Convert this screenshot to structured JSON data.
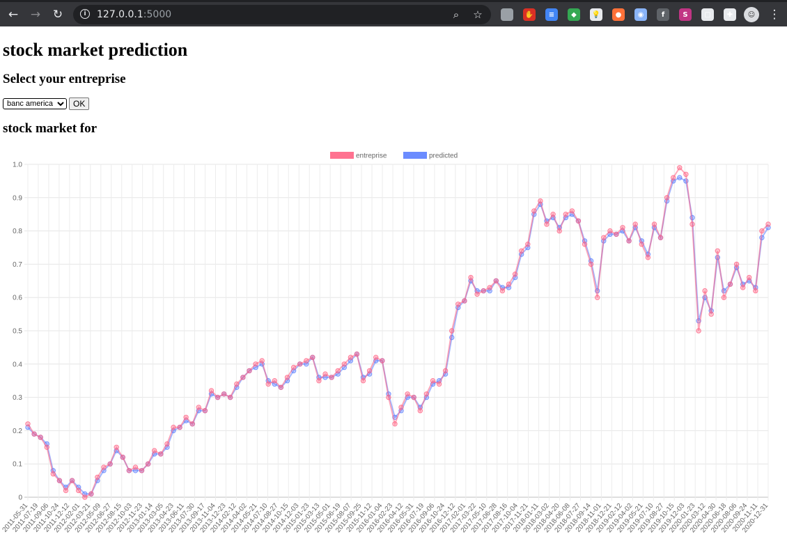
{
  "browser": {
    "url_host": "127.0.0.1",
    "url_port": ":5000",
    "extensions": [
      {
        "name": "screenshot-ext-icon",
        "color": "#9aa0a6",
        "glyph": ""
      },
      {
        "name": "stop-ext-icon",
        "color": "#d93025",
        "glyph": "✋"
      },
      {
        "name": "docs-ext-icon",
        "color": "#4285f4",
        "glyph": "≡"
      },
      {
        "name": "puzzle-colored-ext-icon",
        "color": "#34a853",
        "glyph": "◆"
      },
      {
        "name": "bulb-ext-icon",
        "color": "#e8eaed",
        "glyph": "💡"
      },
      {
        "name": "fox-ext-icon",
        "color": "#ff7139",
        "glyph": "●"
      },
      {
        "name": "disc-ext-icon",
        "color": "#8ab4f8",
        "glyph": "◉"
      },
      {
        "name": "facebook-ext-icon",
        "color": "#5f6368",
        "glyph": "f"
      },
      {
        "name": "s-ext-icon",
        "color": "#c13584",
        "glyph": "S"
      },
      {
        "name": "window-ext-icon",
        "color": "#e8eaed",
        "glyph": "▢"
      },
      {
        "name": "extensions-puzzle-icon",
        "color": "#e8eaed",
        "glyph": "✚"
      }
    ]
  },
  "page": {
    "title": "stock market prediction",
    "select_heading": "Select your entreprise",
    "select_value": "banc america",
    "ok_label": "OK",
    "chart_heading": "stock market for"
  },
  "chart_data": {
    "type": "line",
    "legend_position": "top",
    "grid": true,
    "ylim": [
      0,
      1
    ],
    "yticks": [
      "0",
      "0.1",
      "0.2",
      "0.3",
      "0.4",
      "0.5",
      "0.6",
      "0.7",
      "0.8",
      "0.9",
      "1.0"
    ],
    "x_tick_labels": [
      "2011-05-31",
      "2011-07-19",
      "2011-09-06",
      "2011-10-24",
      "2011-12-12",
      "2012-02-01",
      "2012-03-21",
      "2012-05-09",
      "2012-06-27",
      "2012-08-15",
      "2012-10-03",
      "2012-11-23",
      "2013-01-14",
      "2013-03-05",
      "2013-04-23",
      "2013-06-11",
      "2013-07-30",
      "2013-09-17",
      "2013-11-04",
      "2013-12-23",
      "2014-02-12",
      "2014-04-02",
      "2014-05-21",
      "2014-07-10",
      "2014-08-27",
      "2014-10-15",
      "2014-12-03",
      "2015-01-23",
      "2015-03-13",
      "2015-05-01",
      "2015-06-19",
      "2015-08-07",
      "2015-09-25",
      "2015-11-12",
      "2016-01-04",
      "2016-02-23",
      "2016-04-12",
      "2016-05-31",
      "2016-07-19",
      "2016-09-06",
      "2016-10-24",
      "2016-12-12",
      "2017-02-01",
      "2017-03-22",
      "2017-05-10",
      "2017-06-28",
      "2017-08-16",
      "2017-10-04",
      "2017-11-21",
      "2018-01-11",
      "2018-03-02",
      "2018-04-20",
      "2018-06-08",
      "2018-07-27",
      "2018-09-14",
      "2018-11-01",
      "2018-12-21",
      "2019-02-12",
      "2019-04-02",
      "2019-05-21",
      "2019-07-10",
      "2019-08-27",
      "2019-10-15",
      "2019-12-03",
      "2020-01-23",
      "2020-03-12",
      "2020-04-30",
      "2020-06-18",
      "2020-08-06",
      "2020-09-24",
      "2020-11-11",
      "2020-12-31"
    ],
    "series": [
      {
        "name": "entreprise",
        "color": "#ff6384",
        "values": [
          0.22,
          0.19,
          0.18,
          0.15,
          0.07,
          0.05,
          0.02,
          0.05,
          0.02,
          0.0,
          0.01,
          0.06,
          0.09,
          0.1,
          0.15,
          0.12,
          0.08,
          0.09,
          0.08,
          0.1,
          0.14,
          0.13,
          0.16,
          0.21,
          0.21,
          0.24,
          0.22,
          0.27,
          0.26,
          0.32,
          0.3,
          0.31,
          0.3,
          0.34,
          0.36,
          0.38,
          0.4,
          0.41,
          0.34,
          0.35,
          0.33,
          0.36,
          0.39,
          0.4,
          0.41,
          0.42,
          0.35,
          0.37,
          0.36,
          0.38,
          0.4,
          0.42,
          0.43,
          0.35,
          0.38,
          0.42,
          0.41,
          0.3,
          0.22,
          0.27,
          0.31,
          0.3,
          0.26,
          0.31,
          0.35,
          0.34,
          0.38,
          0.5,
          0.58,
          0.59,
          0.66,
          0.61,
          0.62,
          0.63,
          0.65,
          0.62,
          0.64,
          0.67,
          0.74,
          0.76,
          0.86,
          0.89,
          0.82,
          0.85,
          0.8,
          0.85,
          0.86,
          0.83,
          0.76,
          0.7,
          0.6,
          0.78,
          0.8,
          0.79,
          0.81,
          0.77,
          0.82,
          0.76,
          0.72,
          0.82,
          0.78,
          0.9,
          0.96,
          0.99,
          0.97,
          0.82,
          0.5,
          0.62,
          0.55,
          0.74,
          0.6,
          0.64,
          0.7,
          0.63,
          0.66,
          0.62,
          0.8,
          0.82
        ]
      },
      {
        "name": "predicted",
        "color": "#5b7fff",
        "values": [
          0.21,
          0.19,
          0.18,
          0.16,
          0.08,
          0.05,
          0.03,
          0.05,
          0.03,
          0.01,
          0.01,
          0.05,
          0.08,
          0.1,
          0.14,
          0.12,
          0.08,
          0.08,
          0.08,
          0.1,
          0.13,
          0.13,
          0.15,
          0.2,
          0.21,
          0.23,
          0.22,
          0.26,
          0.26,
          0.31,
          0.3,
          0.31,
          0.3,
          0.33,
          0.36,
          0.38,
          0.39,
          0.4,
          0.35,
          0.34,
          0.33,
          0.35,
          0.38,
          0.4,
          0.4,
          0.42,
          0.36,
          0.36,
          0.36,
          0.37,
          0.39,
          0.41,
          0.43,
          0.36,
          0.37,
          0.41,
          0.41,
          0.31,
          0.24,
          0.26,
          0.3,
          0.3,
          0.27,
          0.3,
          0.34,
          0.35,
          0.37,
          0.48,
          0.57,
          0.59,
          0.65,
          0.62,
          0.62,
          0.62,
          0.65,
          0.63,
          0.63,
          0.66,
          0.73,
          0.75,
          0.85,
          0.88,
          0.83,
          0.84,
          0.81,
          0.84,
          0.85,
          0.83,
          0.77,
          0.71,
          0.62,
          0.77,
          0.79,
          0.79,
          0.8,
          0.77,
          0.81,
          0.77,
          0.73,
          0.81,
          0.78,
          0.89,
          0.95,
          0.96,
          0.95,
          0.84,
          0.53,
          0.6,
          0.56,
          0.72,
          0.62,
          0.64,
          0.69,
          0.64,
          0.65,
          0.63,
          0.78,
          0.81
        ]
      }
    ]
  }
}
